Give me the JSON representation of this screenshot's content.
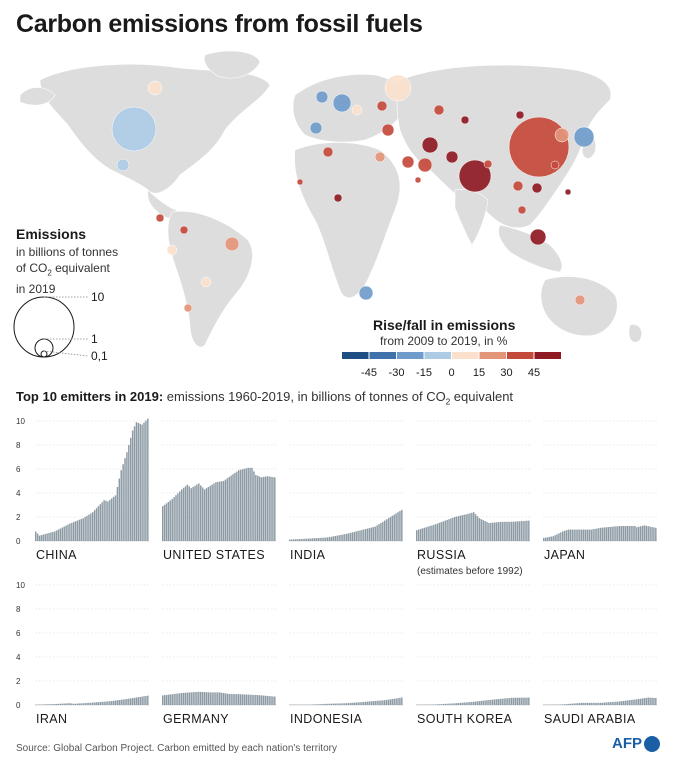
{
  "title": "Carbon emissions from fossil fuels",
  "size_legend": {
    "title": "Emissions",
    "subtitle_line1": "in billions of tonnes",
    "subtitle_line2_pre": "of CO",
    "subtitle_line2_sub": "2",
    "subtitle_line2_post": " equivalent",
    "subtitle_line3": "in 2019",
    "labels": [
      "10",
      "1",
      "0,1"
    ]
  },
  "color_legend": {
    "title": "Rise/fall in emissions",
    "subtitle": "from 2009 to 2019, in %",
    "ticks": [
      "-45",
      "-30",
      "-15",
      "0",
      "15",
      "30",
      "45"
    ],
    "colors": [
      "#1f4e85",
      "#3f72ab",
      "#6f9ccb",
      "#aecbe6",
      "#fbe1cd",
      "#e3957a",
      "#c44a3c",
      "#8f1a24"
    ]
  },
  "section": {
    "title_bold": "Top 10 emitters in 2019:",
    "title_rest": " emissions 1960-2019, in billions of tonnes of CO",
    "title_sub": "2",
    "title_end": " equivalent"
  },
  "chart_data": {
    "type": "bar",
    "x_range": [
      1960,
      2019
    ],
    "ylim": [
      0,
      10
    ],
    "y_ticks": [
      "0",
      "2",
      "4",
      "6",
      "8",
      "10"
    ],
    "grid": true,
    "bar_color": "#8c9aa4",
    "series": [
      {
        "name": "CHINA",
        "anchors": [
          [
            1960,
            0.78
          ],
          [
            1962,
            0.45
          ],
          [
            1970,
            0.8
          ],
          [
            1978,
            1.45
          ],
          [
            1985,
            1.9
          ],
          [
            1990,
            2.4
          ],
          [
            1996,
            3.4
          ],
          [
            1998,
            3.3
          ],
          [
            2002,
            3.8
          ],
          [
            2005,
            5.9
          ],
          [
            2008,
            7.4
          ],
          [
            2011,
            9.2
          ],
          [
            2013,
            9.9
          ],
          [
            2016,
            9.7
          ],
          [
            2019,
            10.2
          ]
        ]
      },
      {
        "name": "UNITED STATES",
        "anchors": [
          [
            1960,
            2.9
          ],
          [
            1965,
            3.5
          ],
          [
            1970,
            4.3
          ],
          [
            1973,
            4.7
          ],
          [
            1975,
            4.4
          ],
          [
            1979,
            4.8
          ],
          [
            1982,
            4.3
          ],
          [
            1988,
            4.9
          ],
          [
            1992,
            5.0
          ],
          [
            2000,
            5.9
          ],
          [
            2005,
            6.1
          ],
          [
            2007,
            6.1
          ],
          [
            2009,
            5.5
          ],
          [
            2012,
            5.3
          ],
          [
            2015,
            5.4
          ],
          [
            2019,
            5.3
          ]
        ]
      },
      {
        "name": "INDIA",
        "anchors": [
          [
            1960,
            0.12
          ],
          [
            1970,
            0.2
          ],
          [
            1980,
            0.3
          ],
          [
            1990,
            0.6
          ],
          [
            2000,
            1.0
          ],
          [
            2005,
            1.2
          ],
          [
            2010,
            1.7
          ],
          [
            2015,
            2.2
          ],
          [
            2019,
            2.6
          ]
        ]
      },
      {
        "name": "RUSSIA",
        "note": "(estimates before 1992)",
        "anchors": [
          [
            1960,
            0.9
          ],
          [
            1970,
            1.4
          ],
          [
            1980,
            2.0
          ],
          [
            1988,
            2.3
          ],
          [
            1990,
            2.4
          ],
          [
            1993,
            1.9
          ],
          [
            1998,
            1.5
          ],
          [
            2005,
            1.6
          ],
          [
            2010,
            1.6
          ],
          [
            2019,
            1.7
          ]
        ]
      },
      {
        "name": "JAPAN",
        "anchors": [
          [
            1960,
            0.25
          ],
          [
            1965,
            0.4
          ],
          [
            1970,
            0.8
          ],
          [
            1973,
            0.95
          ],
          [
            1980,
            0.95
          ],
          [
            1985,
            0.95
          ],
          [
            1990,
            1.1
          ],
          [
            2000,
            1.25
          ],
          [
            2008,
            1.25
          ],
          [
            2009,
            1.15
          ],
          [
            2013,
            1.3
          ],
          [
            2019,
            1.1
          ]
        ]
      },
      {
        "name": "IRAN",
        "anchors": [
          [
            1960,
            0.03
          ],
          [
            1970,
            0.08
          ],
          [
            1978,
            0.15
          ],
          [
            1980,
            0.1
          ],
          [
            1990,
            0.2
          ],
          [
            2000,
            0.33
          ],
          [
            2010,
            0.55
          ],
          [
            2019,
            0.78
          ]
        ]
      },
      {
        "name": "GERMANY",
        "anchors": [
          [
            1960,
            0.8
          ],
          [
            1970,
            1.0
          ],
          [
            1979,
            1.1
          ],
          [
            1985,
            1.05
          ],
          [
            1990,
            1.05
          ],
          [
            1995,
            0.92
          ],
          [
            2000,
            0.9
          ],
          [
            2010,
            0.83
          ],
          [
            2019,
            0.7
          ]
        ]
      },
      {
        "name": "INDONESIA",
        "anchors": [
          [
            1960,
            0.02
          ],
          [
            1970,
            0.03
          ],
          [
            1980,
            0.1
          ],
          [
            1990,
            0.15
          ],
          [
            2000,
            0.27
          ],
          [
            2010,
            0.4
          ],
          [
            2019,
            0.62
          ]
        ]
      },
      {
        "name": "SOUTH KOREA",
        "anchors": [
          [
            1960,
            0.01
          ],
          [
            1970,
            0.05
          ],
          [
            1980,
            0.14
          ],
          [
            1990,
            0.27
          ],
          [
            2000,
            0.45
          ],
          [
            2010,
            0.6
          ],
          [
            2019,
            0.62
          ]
        ]
      },
      {
        "name": "SAUDI ARABIA",
        "anchors": [
          [
            1960,
            0.01
          ],
          [
            1970,
            0.05
          ],
          [
            1980,
            0.18
          ],
          [
            1990,
            0.18
          ],
          [
            2000,
            0.3
          ],
          [
            2010,
            0.5
          ],
          [
            2015,
            0.62
          ],
          [
            2019,
            0.58
          ]
        ]
      }
    ]
  },
  "footer": {
    "source": "Source: Global Carbon Project. Carbon emitted by each nation's territory",
    "logo": "AFP"
  }
}
